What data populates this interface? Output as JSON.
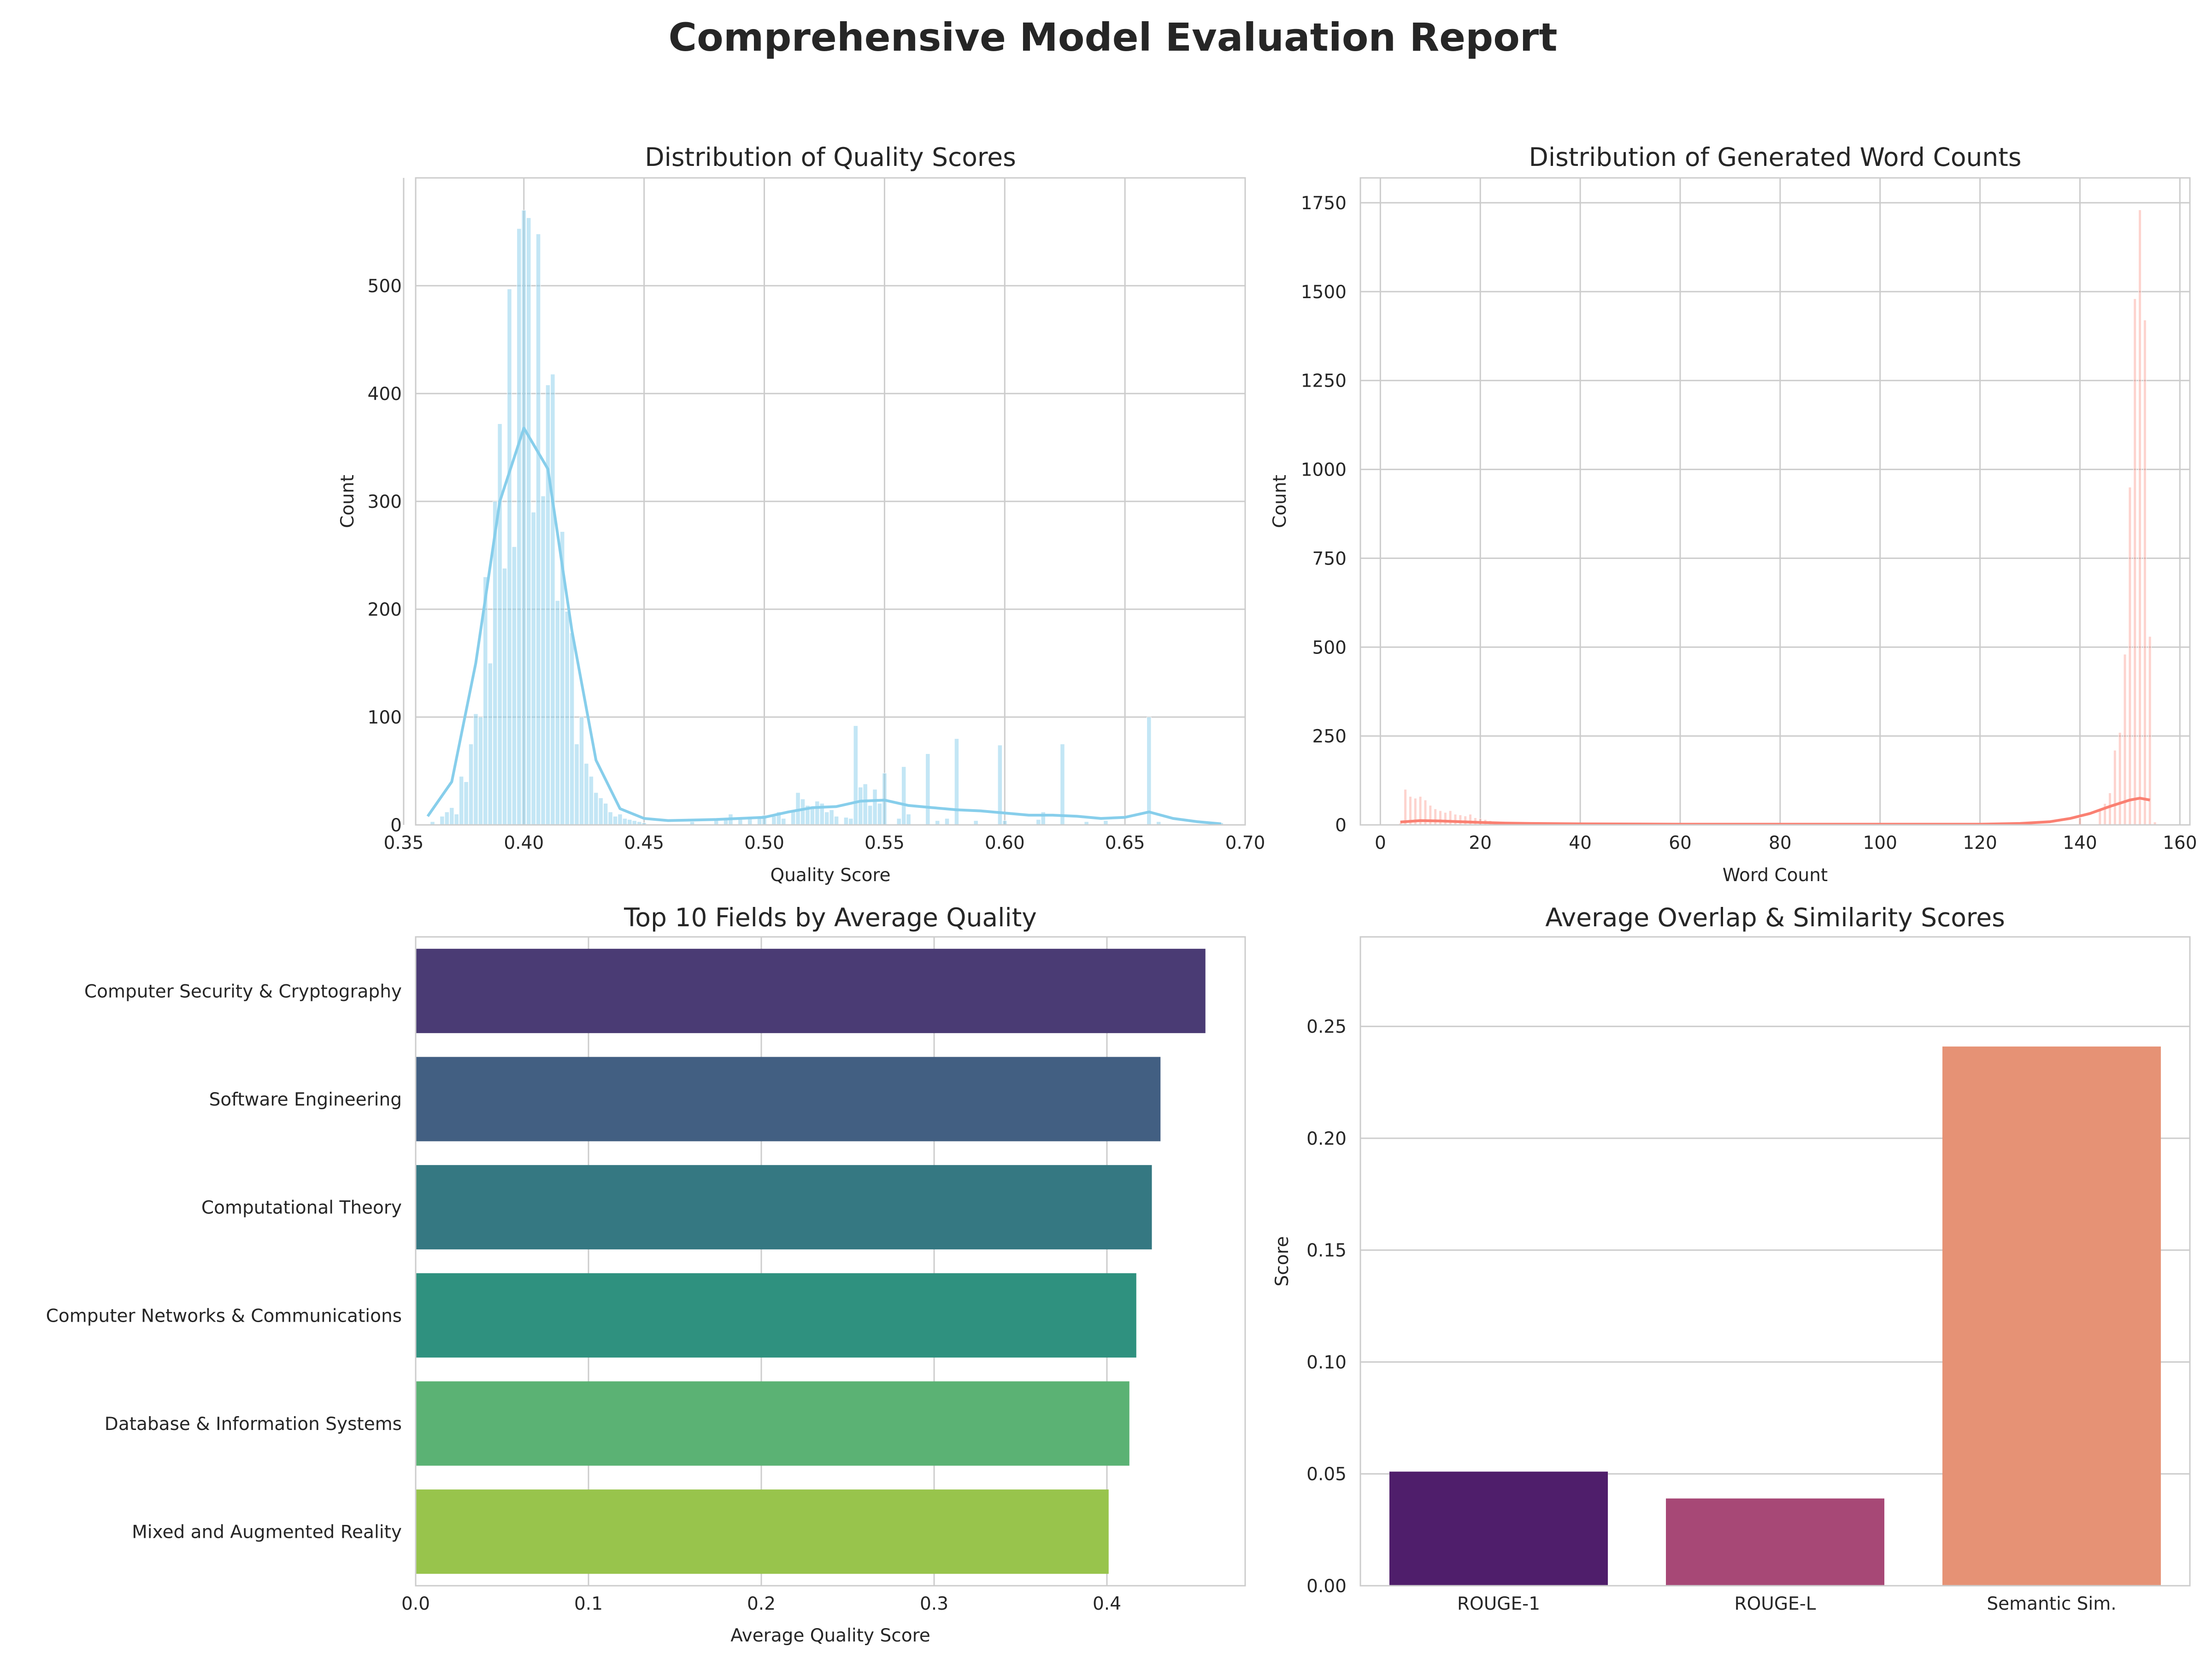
{
  "figure": {
    "title": "Comprehensive Model Evaluation Report"
  },
  "chart_data": [
    {
      "type": "histogram",
      "title": "Distribution of Quality Scores",
      "xlabel": "Quality Score",
      "ylabel": "Count",
      "xlim": [
        0.355,
        0.7
      ],
      "ylim": [
        0,
        600
      ],
      "xticks": [
        "0.35",
        "0.40",
        "0.45",
        "0.50",
        "0.55",
        "0.60",
        "0.65",
        "0.70"
      ],
      "yticks": [
        "0",
        "100",
        "200",
        "300",
        "400",
        "500"
      ],
      "grid": true,
      "color": "#87ceeb",
      "bars": [
        [
          0.362,
          3
        ],
        [
          0.366,
          8
        ],
        [
          0.368,
          12
        ],
        [
          0.37,
          16
        ],
        [
          0.372,
          10
        ],
        [
          0.374,
          45
        ],
        [
          0.376,
          40
        ],
        [
          0.378,
          75
        ],
        [
          0.38,
          103
        ],
        [
          0.382,
          100
        ],
        [
          0.384,
          230
        ],
        [
          0.386,
          150
        ],
        [
          0.388,
          300
        ],
        [
          0.39,
          372
        ],
        [
          0.392,
          238
        ],
        [
          0.394,
          497
        ],
        [
          0.396,
          258
        ],
        [
          0.398,
          553
        ],
        [
          0.4,
          570
        ],
        [
          0.402,
          563
        ],
        [
          0.404,
          290
        ],
        [
          0.406,
          548
        ],
        [
          0.408,
          305
        ],
        [
          0.41,
          408
        ],
        [
          0.412,
          418
        ],
        [
          0.414,
          208
        ],
        [
          0.416,
          272
        ],
        [
          0.418,
          198
        ],
        [
          0.42,
          178
        ],
        [
          0.422,
          75
        ],
        [
          0.424,
          100
        ],
        [
          0.426,
          57
        ],
        [
          0.428,
          45
        ],
        [
          0.43,
          30
        ],
        [
          0.432,
          25
        ],
        [
          0.434,
          20
        ],
        [
          0.436,
          12
        ],
        [
          0.438,
          8
        ],
        [
          0.44,
          10
        ],
        [
          0.442,
          6
        ],
        [
          0.444,
          5
        ],
        [
          0.446,
          4
        ],
        [
          0.448,
          3
        ],
        [
          0.45,
          2
        ],
        [
          0.47,
          3
        ],
        [
          0.48,
          4
        ],
        [
          0.484,
          6
        ],
        [
          0.486,
          10
        ],
        [
          0.49,
          5
        ],
        [
          0.494,
          7
        ],
        [
          0.498,
          6
        ],
        [
          0.5,
          9
        ],
        [
          0.504,
          8
        ],
        [
          0.506,
          12
        ],
        [
          0.508,
          6
        ],
        [
          0.512,
          14
        ],
        [
          0.514,
          30
        ],
        [
          0.516,
          24
        ],
        [
          0.518,
          18
        ],
        [
          0.52,
          15
        ],
        [
          0.522,
          22
        ],
        [
          0.524,
          20
        ],
        [
          0.526,
          12
        ],
        [
          0.528,
          14
        ],
        [
          0.53,
          8
        ],
        [
          0.534,
          7
        ],
        [
          0.536,
          6
        ],
        [
          0.538,
          92
        ],
        [
          0.54,
          35
        ],
        [
          0.542,
          38
        ],
        [
          0.544,
          18
        ],
        [
          0.546,
          33
        ],
        [
          0.548,
          20
        ],
        [
          0.55,
          48
        ],
        [
          0.556,
          6
        ],
        [
          0.558,
          54
        ],
        [
          0.56,
          10
        ],
        [
          0.568,
          66
        ],
        [
          0.572,
          4
        ],
        [
          0.576,
          6
        ],
        [
          0.58,
          80
        ],
        [
          0.588,
          4
        ],
        [
          0.598,
          74
        ],
        [
          0.6,
          4
        ],
        [
          0.614,
          5
        ],
        [
          0.616,
          12
        ],
        [
          0.624,
          75
        ],
        [
          0.634,
          3
        ],
        [
          0.642,
          4
        ],
        [
          0.66,
          100
        ],
        [
          0.664,
          3
        ],
        [
          0.69,
          2
        ]
      ],
      "kde": [
        [
          0.36,
          8
        ],
        [
          0.37,
          40
        ],
        [
          0.38,
          150
        ],
        [
          0.39,
          300
        ],
        [
          0.4,
          368
        ],
        [
          0.41,
          330
        ],
        [
          0.42,
          180
        ],
        [
          0.43,
          60
        ],
        [
          0.44,
          15
        ],
        [
          0.45,
          6
        ],
        [
          0.46,
          4
        ],
        [
          0.48,
          5
        ],
        [
          0.5,
          7
        ],
        [
          0.51,
          12
        ],
        [
          0.52,
          16
        ],
        [
          0.53,
          17
        ],
        [
          0.54,
          22
        ],
        [
          0.55,
          23
        ],
        [
          0.56,
          18
        ],
        [
          0.57,
          16
        ],
        [
          0.58,
          14
        ],
        [
          0.59,
          13
        ],
        [
          0.6,
          11
        ],
        [
          0.61,
          9
        ],
        [
          0.62,
          9
        ],
        [
          0.63,
          8
        ],
        [
          0.64,
          6
        ],
        [
          0.65,
          7
        ],
        [
          0.66,
          12
        ],
        [
          0.67,
          6
        ],
        [
          0.68,
          3
        ],
        [
          0.69,
          1
        ]
      ]
    },
    {
      "type": "histogram",
      "title": "Distribution of Generated Word Counts",
      "xlabel": "Word Count",
      "ylabel": "Count",
      "xlim": [
        -4,
        162
      ],
      "ylim": [
        0,
        1820
      ],
      "xticks": [
        "0",
        "20",
        "40",
        "60",
        "80",
        "100",
        "120",
        "140",
        "160"
      ],
      "yticks": [
        "0",
        "250",
        "500",
        "750",
        "1000",
        "1250",
        "1500",
        "1750"
      ],
      "grid": true,
      "color": "#fa8072",
      "bars": [
        [
          4,
          5
        ],
        [
          5,
          100
        ],
        [
          6,
          80
        ],
        [
          7,
          75
        ],
        [
          8,
          80
        ],
        [
          9,
          70
        ],
        [
          10,
          55
        ],
        [
          11,
          45
        ],
        [
          12,
          40
        ],
        [
          13,
          35
        ],
        [
          14,
          40
        ],
        [
          15,
          30
        ],
        [
          16,
          28
        ],
        [
          17,
          25
        ],
        [
          18,
          30
        ],
        [
          19,
          20
        ],
        [
          20,
          18
        ],
        [
          21,
          15
        ],
        [
          22,
          12
        ],
        [
          23,
          10
        ],
        [
          24,
          8
        ],
        [
          25,
          5
        ],
        [
          26,
          5
        ],
        [
          27,
          4
        ],
        [
          28,
          3
        ],
        [
          29,
          3
        ],
        [
          30,
          2
        ],
        [
          140,
          20
        ],
        [
          144,
          40
        ],
        [
          145,
          60
        ],
        [
          146,
          90
        ],
        [
          147,
          210
        ],
        [
          148,
          260
        ],
        [
          149,
          480
        ],
        [
          150,
          950
        ],
        [
          151,
          1480
        ],
        [
          152,
          1730
        ],
        [
          153,
          1420
        ],
        [
          154,
          530
        ],
        [
          155,
          8
        ]
      ],
      "kde": [
        [
          4,
          8
        ],
        [
          8,
          12
        ],
        [
          12,
          11
        ],
        [
          16,
          9
        ],
        [
          20,
          7
        ],
        [
          25,
          5
        ],
        [
          30,
          4
        ],
        [
          40,
          3
        ],
        [
          60,
          2
        ],
        [
          80,
          2
        ],
        [
          100,
          2
        ],
        [
          120,
          2
        ],
        [
          128,
          4
        ],
        [
          134,
          9
        ],
        [
          138,
          18
        ],
        [
          142,
          32
        ],
        [
          146,
          52
        ],
        [
          150,
          70
        ],
        [
          152,
          75
        ],
        [
          154,
          70
        ]
      ]
    },
    {
      "type": "bar",
      "orientation": "horizontal",
      "title": "Top 10 Fields by Average Quality",
      "xlabel": "Average Quality Score",
      "ylabel": "",
      "xlim": [
        0,
        0.48
      ],
      "xticks": [
        "0.0",
        "0.1",
        "0.2",
        "0.3",
        "0.4"
      ],
      "grid": true,
      "categories": [
        "Computer Security & Cryptography",
        "Software Engineering",
        "Computational Theory",
        "Computer Networks & Communications",
        "Database & Information Systems",
        "Mixed and Augmented Reality"
      ],
      "values": [
        0.457,
        0.431,
        0.426,
        0.417,
        0.413,
        0.401
      ],
      "colors": [
        "#4a3b74",
        "#425f82",
        "#357882",
        "#2f917f",
        "#5bb274",
        "#98c44c"
      ]
    },
    {
      "type": "bar",
      "title": "Average Overlap & Similarity Scores",
      "xlabel": "",
      "ylabel": "Score",
      "ylim": [
        0,
        0.29
      ],
      "yticks": [
        "0.00",
        "0.05",
        "0.10",
        "0.15",
        "0.20",
        "0.25"
      ],
      "grid": true,
      "categories": [
        "ROUGE-1",
        "ROUGE-L",
        "Semantic Sim."
      ],
      "values": [
        0.051,
        0.039,
        0.241
      ],
      "colors": [
        "#4f1e6b",
        "#a74876",
        "#e69275"
      ]
    }
  ]
}
